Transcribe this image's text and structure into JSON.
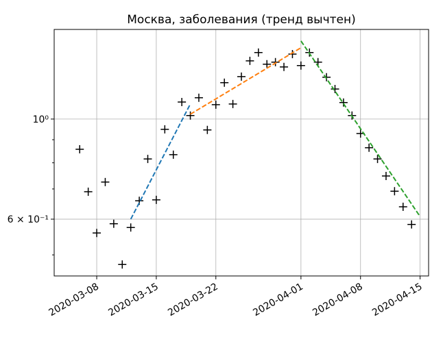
{
  "chart_data": {
    "type": "scatter",
    "title": "Москва, заболевания (тренд вычтен)",
    "yscale": "log",
    "grid": true,
    "xlim": [
      "2020-03-03",
      "2020-04-16"
    ],
    "xticks": [
      "2020-03-08",
      "2020-03-15",
      "2020-03-22",
      "2020-04-01",
      "2020-04-08",
      "2020-04-15"
    ],
    "ylim": [
      0.449,
      1.58
    ],
    "yticks": [
      {
        "value": 0.6,
        "label": "6 × 10⁻¹"
      },
      {
        "value": 1,
        "label": "10⁰"
      }
    ],
    "yminorticks": [
      0.5,
      0.7,
      0.8,
      0.9
    ],
    "series": [
      {
        "color": "#000000",
        "style": "plus",
        "x": [
          "2020-03-06",
          "2020-03-07",
          "2020-03-08",
          "2020-03-09",
          "2020-03-10",
          "2020-03-11",
          "2020-03-12",
          "2020-03-13",
          "2020-03-14",
          "2020-03-15",
          "2020-03-16",
          "2020-03-17",
          "2020-03-18",
          "2020-03-19",
          "2020-03-20",
          "2020-03-21",
          "2020-03-22",
          "2020-03-23",
          "2020-03-24",
          "2020-03-25",
          "2020-03-26",
          "2020-03-27",
          "2020-03-28",
          "2020-03-29",
          "2020-03-30",
          "2020-03-31",
          "2020-04-01",
          "2020-04-02",
          "2020-04-03",
          "2020-04-04",
          "2020-04-05",
          "2020-04-06",
          "2020-04-07",
          "2020-04-08",
          "2020-04-09",
          "2020-04-10",
          "2020-04-11",
          "2020-04-12",
          "2020-04-13",
          "2020-04-14"
        ],
        "values": [
          0.857,
          0.69,
          0.559,
          0.725,
          0.586,
          0.476,
          0.575,
          0.659,
          0.816,
          0.662,
          0.949,
          0.834,
          1.091,
          1.018,
          1.115,
          0.946,
          1.076,
          1.204,
          1.08,
          1.242,
          1.346,
          1.404,
          1.323,
          1.337,
          1.305,
          1.393,
          1.314,
          1.404,
          1.337,
          1.238,
          1.166,
          1.088,
          1.018,
          0.929,
          0.864,
          0.816,
          0.748,
          0.692,
          0.639,
          0.584
        ]
      },
      {
        "color": "#1f77b4",
        "style": "dashed",
        "x": [
          "2020-03-12",
          "2020-03-19"
        ],
        "values": [
          0.6,
          1.08
        ]
      },
      {
        "color": "#ff7f0e",
        "style": "dashed",
        "x": [
          "2020-03-19",
          "2020-04-01"
        ],
        "values": [
          1.025,
          1.439
        ]
      },
      {
        "color": "#2ca02c",
        "style": "dashed",
        "x": [
          "2020-04-01",
          "2020-04-15"
        ],
        "values": [
          1.49,
          0.608
        ]
      }
    ]
  }
}
